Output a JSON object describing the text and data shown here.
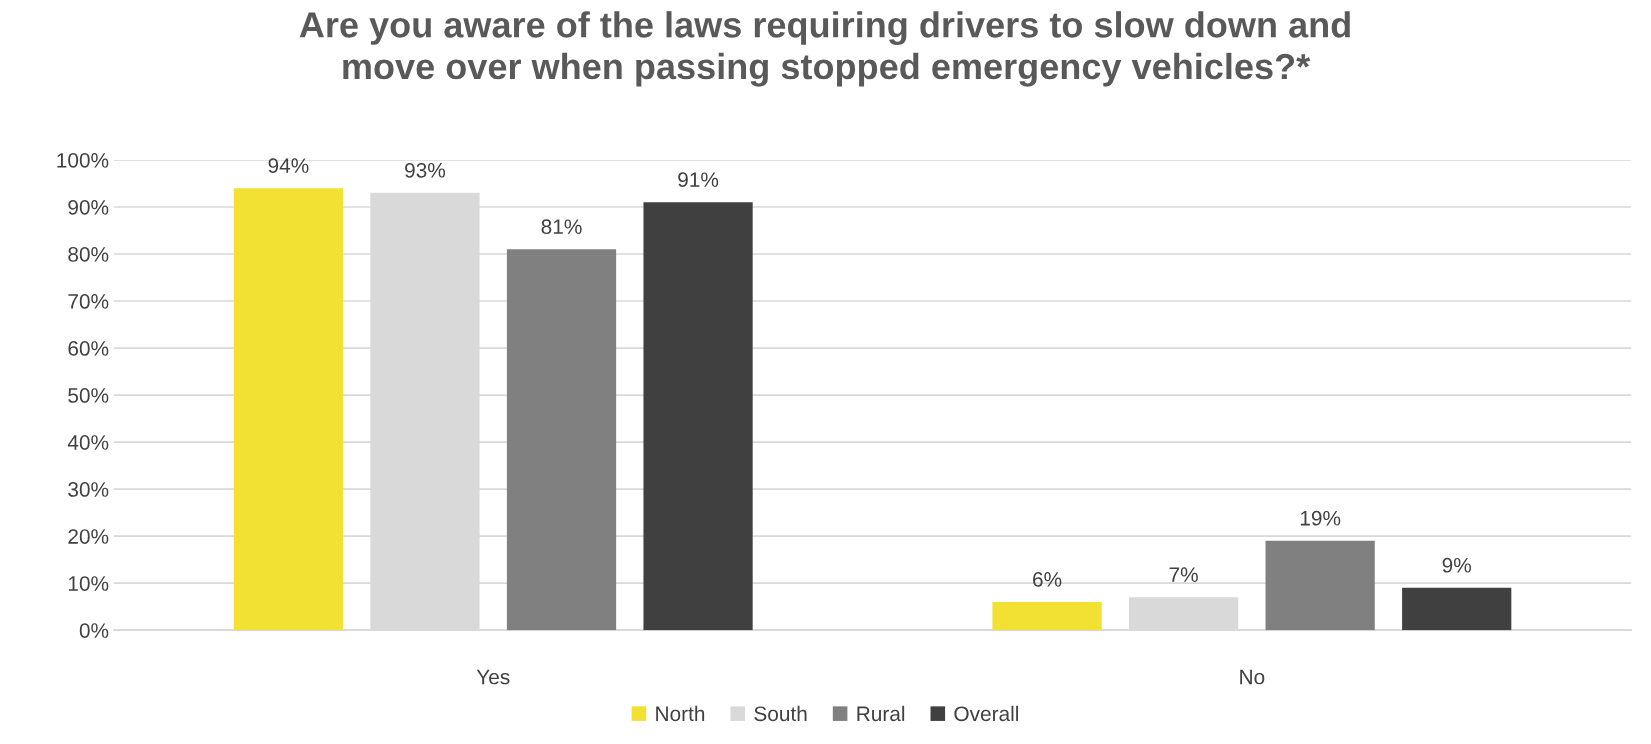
{
  "chart_data": {
    "type": "bar",
    "title": "Are you aware of the laws requiring drivers to slow down and\nmove over when passing stopped emergency vehicles?*",
    "categories": [
      "Yes",
      "No"
    ],
    "series": [
      {
        "name": "North",
        "color": "#f2e033",
        "values": [
          94,
          6
        ],
        "value_labels": [
          "94%",
          "6%"
        ]
      },
      {
        "name": "South",
        "color": "#d9d9d9",
        "values": [
          93,
          7
        ],
        "value_labels": [
          "93%",
          "7%"
        ]
      },
      {
        "name": "Rural",
        "color": "#808080",
        "values": [
          81,
          19
        ],
        "value_labels": [
          "81%",
          "19%"
        ]
      },
      {
        "name": "Overall",
        "color": "#404040",
        "values": [
          91,
          9
        ],
        "value_labels": [
          "91%",
          "9%"
        ]
      }
    ],
    "ylim": [
      0,
      100
    ],
    "yticks": [
      {
        "value": 0,
        "label": "0%"
      },
      {
        "value": 10,
        "label": "10%"
      },
      {
        "value": 20,
        "label": "20%"
      },
      {
        "value": 30,
        "label": "30%"
      },
      {
        "value": 40,
        "label": "40%"
      },
      {
        "value": 50,
        "label": "50%"
      },
      {
        "value": 60,
        "label": "60%"
      },
      {
        "value": 70,
        "label": "70%"
      },
      {
        "value": 80,
        "label": "80%"
      },
      {
        "value": 90,
        "label": "90%"
      },
      {
        "value": 100,
        "label": "100%"
      }
    ],
    "grid": "y",
    "legend": "bottom"
  }
}
